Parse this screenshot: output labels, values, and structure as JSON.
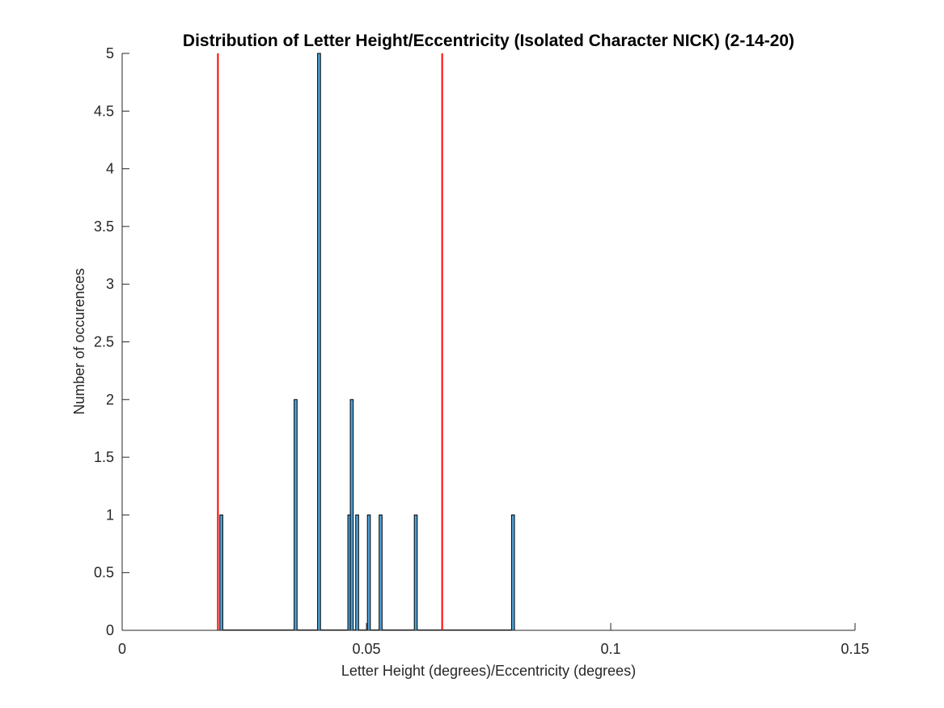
{
  "chart_data": {
    "type": "bar",
    "title": "Distribution of Letter Height/Eccentricity (Isolated Character NICK) (2-14-20)",
    "xlabel": "Letter Height (degrees)/Eccentricity (degrees)",
    "ylabel": "Number of occurences",
    "xlim": [
      0,
      0.15
    ],
    "ylim": [
      0,
      5
    ],
    "xticks": [
      0,
      0.05,
      0.1,
      0.15
    ],
    "xtick_labels": [
      "0",
      "0.05",
      "0.1",
      "0.15"
    ],
    "yticks": [
      0,
      0.5,
      1,
      1.5,
      2,
      2.5,
      3,
      3.5,
      4,
      4.5,
      5
    ],
    "ytick_labels": [
      "0",
      "0.5",
      "1",
      "1.5",
      "2",
      "2.5",
      "3",
      "3.5",
      "4",
      "4.5",
      "5"
    ],
    "grid": false,
    "bin_width": 0.0006,
    "bars": [
      {
        "x": 0.02,
        "count": 1
      },
      {
        "x": 0.0352,
        "count": 2
      },
      {
        "x": 0.04,
        "count": 5
      },
      {
        "x": 0.0462,
        "count": 1
      },
      {
        "x": 0.0467,
        "count": 2
      },
      {
        "x": 0.0478,
        "count": 1
      },
      {
        "x": 0.0502,
        "count": 1
      },
      {
        "x": 0.0526,
        "count": 1
      },
      {
        "x": 0.0598,
        "count": 1
      },
      {
        "x": 0.0797,
        "count": 1
      }
    ],
    "reference_lines": [
      {
        "x": 0.0196,
        "color": "#ff0000"
      },
      {
        "x": 0.0655,
        "color": "#ff0000"
      }
    ],
    "bar_color": "#4fa3d9",
    "bar_edge_color": "#000000"
  }
}
